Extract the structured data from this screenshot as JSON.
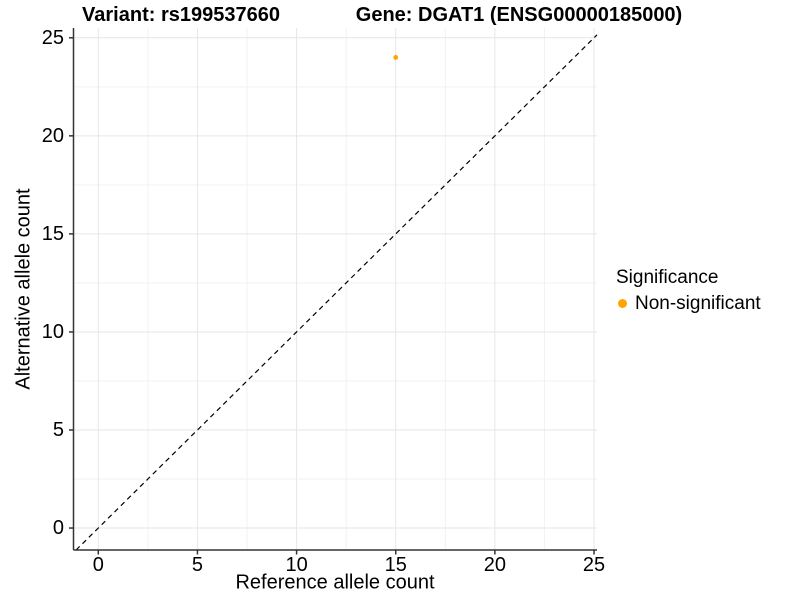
{
  "chart_data": {
    "type": "scatter",
    "titles": [
      "Variant: rs199537660",
      "Gene: DGAT1 (ENSG00000185000)"
    ],
    "xlabel": "Reference allele count",
    "ylabel": "Alternative allele count",
    "xlim": [
      -1.25,
      25.15
    ],
    "ylim": [
      -1.12,
      25.5
    ],
    "x_ticks": [
      0,
      5,
      10,
      15,
      20,
      25
    ],
    "y_ticks": [
      0,
      5,
      10,
      15,
      20,
      25
    ],
    "x_minor_ticks": [
      2.5,
      7.5,
      12.5,
      17.5,
      22.5
    ],
    "y_minor_ticks": [
      2.5,
      7.5,
      12.5,
      17.5,
      22.5
    ],
    "grid": {
      "show": true,
      "major_color": "#E6E6E6",
      "minor_color": "#F2F2F2",
      "background": "#FFFFFF"
    },
    "reference_line": {
      "kind": "identity",
      "equation": "y = x",
      "style": "dashed",
      "color": "#000000"
    },
    "series": [
      {
        "name": "Non-significant",
        "color": "#FFA500",
        "points": [
          {
            "x": 15,
            "y": 24
          }
        ]
      }
    ],
    "legend_position": "right",
    "legend_title": "Significance"
  },
  "style": {
    "axis_color": "#333333",
    "text_color": "#000000",
    "point_radius": 2.4
  }
}
